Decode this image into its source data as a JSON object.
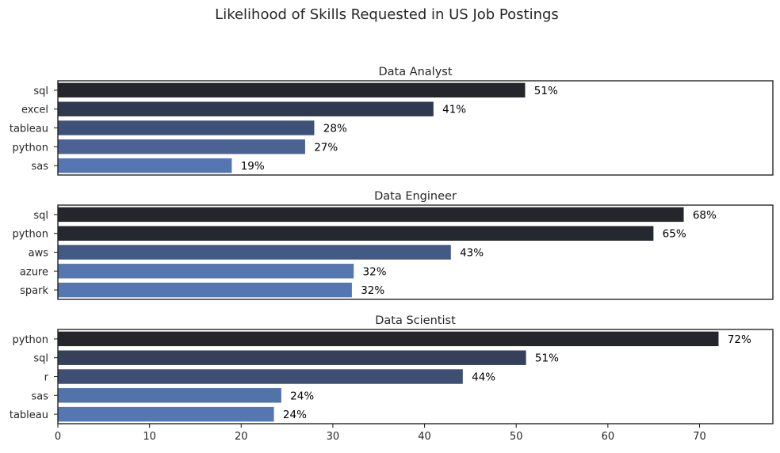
{
  "figure": {
    "title": "Likelihood of Skills Requested in US Job Postings"
  },
  "chart_data": [
    {
      "type": "bar",
      "orientation": "horizontal",
      "title": "Data Analyst",
      "categories": [
        "sql",
        "excel",
        "tableau",
        "python",
        "sas"
      ],
      "values": [
        51,
        41,
        28,
        27,
        19
      ],
      "value_labels": [
        "51%",
        "41%",
        "28%",
        "27%",
        "19%"
      ],
      "xlim": [
        0,
        78
      ],
      "xticks_visible": false,
      "colors": [
        "#24262b",
        "#2f3a51",
        "#3e5278",
        "#4a6392",
        "#5576b0"
      ]
    },
    {
      "type": "bar",
      "orientation": "horizontal",
      "title": "Data Engineer",
      "categories": [
        "sql",
        "python",
        "aws",
        "azure",
        "spark"
      ],
      "values": [
        68.3,
        65,
        42.9,
        32.3,
        32.1
      ],
      "value_labels": [
        "68%",
        "65%",
        "43%",
        "32%",
        "32%"
      ],
      "xlim": [
        0,
        78
      ],
      "xticks_visible": false,
      "colors": [
        "#24262b",
        "#25282e",
        "#435a85",
        "#5576b0",
        "#5576b0"
      ]
    },
    {
      "type": "bar",
      "orientation": "horizontal",
      "title": "Data Scientist",
      "categories": [
        "python",
        "sql",
        "r",
        "sas",
        "tableau"
      ],
      "values": [
        72.1,
        51.1,
        44.2,
        24.4,
        23.6
      ],
      "value_labels": [
        "72%",
        "51%",
        "44%",
        "24%",
        "24%"
      ],
      "xlim": [
        0,
        78
      ],
      "xticks": [
        0,
        10,
        20,
        30,
        40,
        50,
        60,
        70
      ],
      "xtick_labels": [
        "0",
        "10",
        "20",
        "30",
        "40",
        "50",
        "60",
        "70"
      ],
      "xticks_visible": true,
      "colors": [
        "#24262b",
        "#35415a",
        "#3d4f72",
        "#5272aa",
        "#5576b0"
      ]
    }
  ]
}
